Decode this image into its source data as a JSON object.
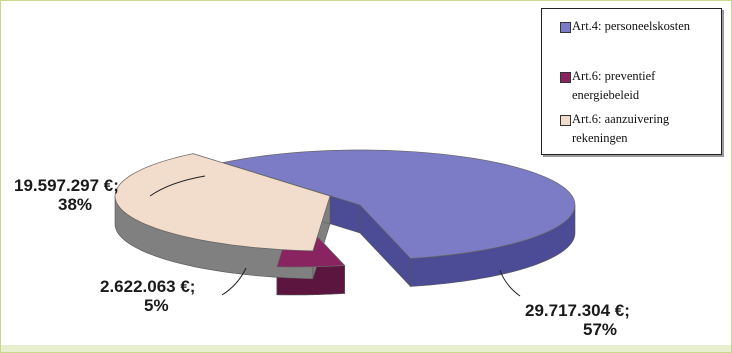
{
  "chart_data": {
    "type": "pie",
    "style": "3d-exploded",
    "slices": [
      {
        "label": "Art.4: personeelskosten",
        "value": 29717304,
        "percent": 57,
        "value_text": "29.717.304 €;",
        "percent_text": "57%",
        "color": "#7c7cc6",
        "side_color": "#4b4b96"
      },
      {
        "label": "Art.6: preventief energiebeleid",
        "value": 2622063,
        "percent": 5,
        "value_text": "2.622.063 €;",
        "percent_text": "5%",
        "color": "#8a2461",
        "side_color": "#5c153f"
      },
      {
        "label": "Art.6: aanzuivering rekeningen",
        "value": 19597297,
        "percent": 38,
        "value_text": "19.597.297 €;",
        "percent_text": "38%",
        "color": "#f2dccc",
        "side_color": "#808080"
      }
    ],
    "legend": {
      "position": "top-right"
    },
    "title": "",
    "grid": false
  }
}
